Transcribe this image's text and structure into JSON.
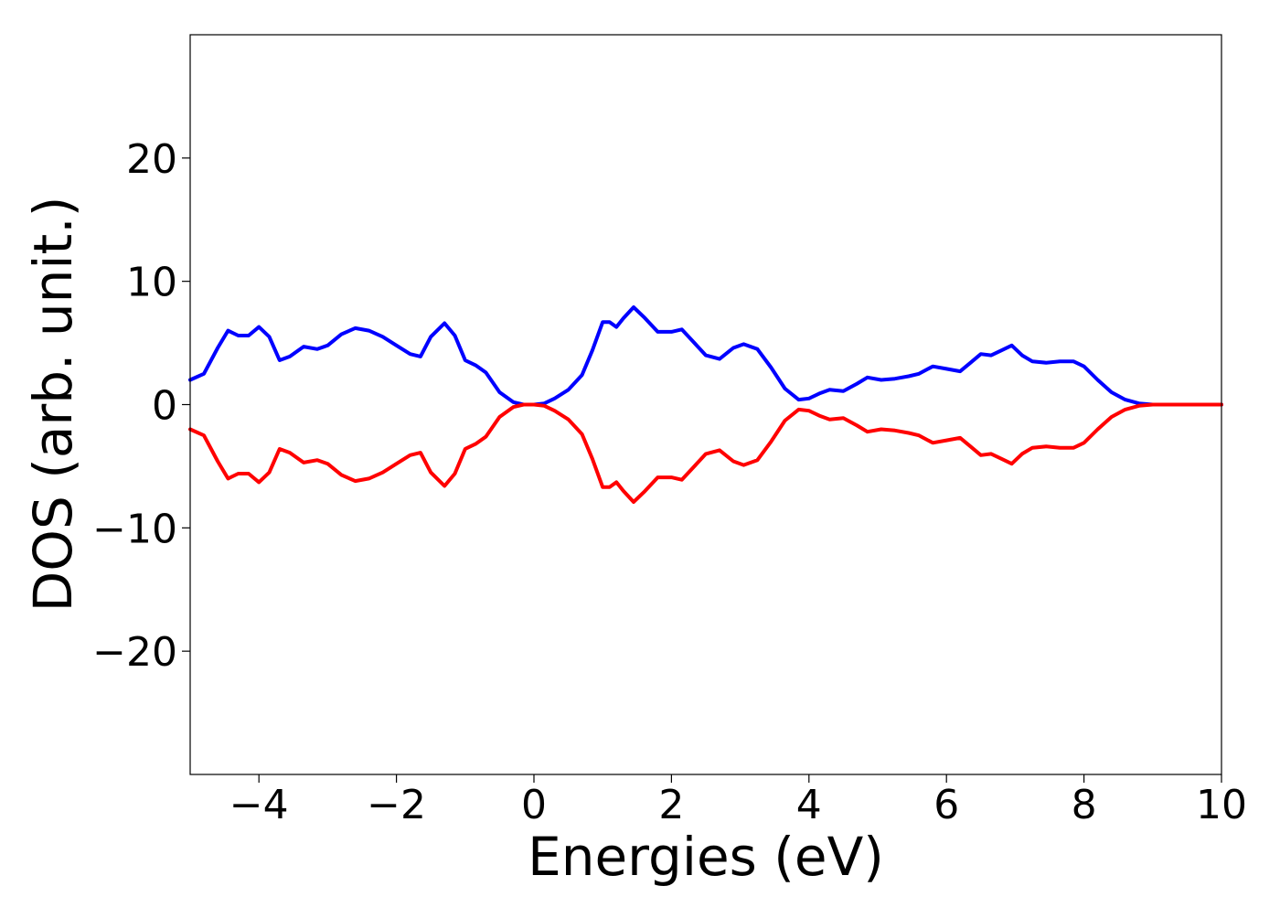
{
  "chart_data": {
    "type": "line",
    "title": "",
    "xlabel": "Energies (eV)",
    "ylabel": "DOS (arb. unit.)",
    "xlim": [
      -5,
      10
    ],
    "ylim": [
      -30,
      30
    ],
    "grid": false,
    "legend": "none",
    "x_ticks": [
      -4,
      -2,
      0,
      2,
      4,
      6,
      8,
      10
    ],
    "x_tick_labels": [
      "−4",
      "−2",
      "0",
      "2",
      "4",
      "6",
      "8",
      "10"
    ],
    "y_ticks": [
      -20,
      -10,
      0,
      10,
      20
    ],
    "y_tick_labels": [
      "−20",
      "−10",
      "0",
      "10",
      "20"
    ],
    "series": [
      {
        "color": "#0000ff",
        "x": [
          -5.0,
          -4.8,
          -4.6,
          -4.45,
          -4.3,
          -4.15,
          -4.0,
          -3.85,
          -3.7,
          -3.55,
          -3.35,
          -3.15,
          -3.0,
          -2.8,
          -2.6,
          -2.4,
          -2.2,
          -2.0,
          -1.8,
          -1.65,
          -1.5,
          -1.3,
          -1.15,
          -1.0,
          -0.85,
          -0.7,
          -0.5,
          -0.3,
          -0.15,
          0.0,
          0.15,
          0.3,
          0.5,
          0.7,
          0.85,
          1.0,
          1.1,
          1.2,
          1.3,
          1.45,
          1.6,
          1.8,
          2.0,
          2.15,
          2.3,
          2.5,
          2.7,
          2.9,
          3.05,
          3.25,
          3.45,
          3.65,
          3.85,
          4.0,
          4.15,
          4.3,
          4.5,
          4.7,
          4.85,
          5.05,
          5.25,
          5.45,
          5.6,
          5.8,
          6.0,
          6.2,
          6.35,
          6.5,
          6.65,
          6.8,
          6.95,
          7.1,
          7.25,
          7.45,
          7.65,
          7.85,
          8.0,
          8.2,
          8.4,
          8.6,
          8.8,
          9.0,
          9.5,
          10.0
        ],
        "y": [
          2.0,
          2.5,
          4.6,
          6.0,
          5.6,
          5.6,
          6.3,
          5.5,
          3.6,
          3.9,
          4.7,
          4.5,
          4.8,
          5.7,
          6.2,
          6.0,
          5.5,
          4.8,
          4.1,
          3.9,
          5.5,
          6.6,
          5.6,
          3.6,
          3.2,
          2.6,
          1.0,
          0.2,
          0.0,
          0.0,
          0.1,
          0.5,
          1.2,
          2.4,
          4.4,
          6.7,
          6.7,
          6.3,
          7.0,
          7.9,
          7.1,
          5.9,
          5.9,
          6.1,
          5.2,
          4.0,
          3.7,
          4.6,
          4.9,
          4.5,
          3.0,
          1.3,
          0.4,
          0.5,
          0.9,
          1.2,
          1.1,
          1.7,
          2.2,
          2.0,
          2.1,
          2.3,
          2.5,
          3.1,
          2.9,
          2.7,
          3.4,
          4.1,
          4.0,
          4.4,
          4.8,
          4.0,
          3.5,
          3.4,
          3.5,
          3.5,
          3.1,
          2.0,
          1.0,
          0.4,
          0.1,
          0.0,
          0.0,
          0.0
        ]
      },
      {
        "color": "#ff0000",
        "x": [
          -5.0,
          -4.8,
          -4.6,
          -4.45,
          -4.3,
          -4.15,
          -4.0,
          -3.85,
          -3.7,
          -3.55,
          -3.35,
          -3.15,
          -3.0,
          -2.8,
          -2.6,
          -2.4,
          -2.2,
          -2.0,
          -1.8,
          -1.65,
          -1.5,
          -1.3,
          -1.15,
          -1.0,
          -0.85,
          -0.7,
          -0.5,
          -0.3,
          -0.15,
          0.0,
          0.15,
          0.3,
          0.5,
          0.7,
          0.85,
          1.0,
          1.1,
          1.2,
          1.3,
          1.45,
          1.6,
          1.8,
          2.0,
          2.15,
          2.3,
          2.5,
          2.7,
          2.9,
          3.05,
          3.25,
          3.45,
          3.65,
          3.85,
          4.0,
          4.15,
          4.3,
          4.5,
          4.7,
          4.85,
          5.05,
          5.25,
          5.45,
          5.6,
          5.8,
          6.0,
          6.2,
          6.35,
          6.5,
          6.65,
          6.8,
          6.95,
          7.1,
          7.25,
          7.45,
          7.65,
          7.85,
          8.0,
          8.2,
          8.4,
          8.6,
          8.8,
          9.0,
          9.5,
          10.0
        ],
        "y": [
          -2.0,
          -2.5,
          -4.6,
          -6.0,
          -5.6,
          -5.6,
          -6.3,
          -5.5,
          -3.6,
          -3.9,
          -4.7,
          -4.5,
          -4.8,
          -5.7,
          -6.2,
          -6.0,
          -5.5,
          -4.8,
          -4.1,
          -3.9,
          -5.5,
          -6.6,
          -5.6,
          -3.6,
          -3.2,
          -2.6,
          -1.0,
          -0.2,
          0.0,
          0.0,
          -0.1,
          -0.5,
          -1.2,
          -2.4,
          -4.4,
          -6.7,
          -6.7,
          -6.3,
          -7.0,
          -7.9,
          -7.1,
          -5.9,
          -5.9,
          -6.1,
          -5.2,
          -4.0,
          -3.7,
          -4.6,
          -4.9,
          -4.5,
          -3.0,
          -1.3,
          -0.4,
          -0.5,
          -0.9,
          -1.2,
          -1.1,
          -1.7,
          -2.2,
          -2.0,
          -2.1,
          -2.3,
          -2.5,
          -3.1,
          -2.9,
          -2.7,
          -3.4,
          -4.1,
          -4.0,
          -4.4,
          -4.8,
          -4.0,
          -3.5,
          -3.4,
          -3.5,
          -3.5,
          -3.1,
          -2.0,
          -1.0,
          -0.4,
          -0.1,
          0.0,
          0.0,
          0.0
        ]
      }
    ]
  }
}
